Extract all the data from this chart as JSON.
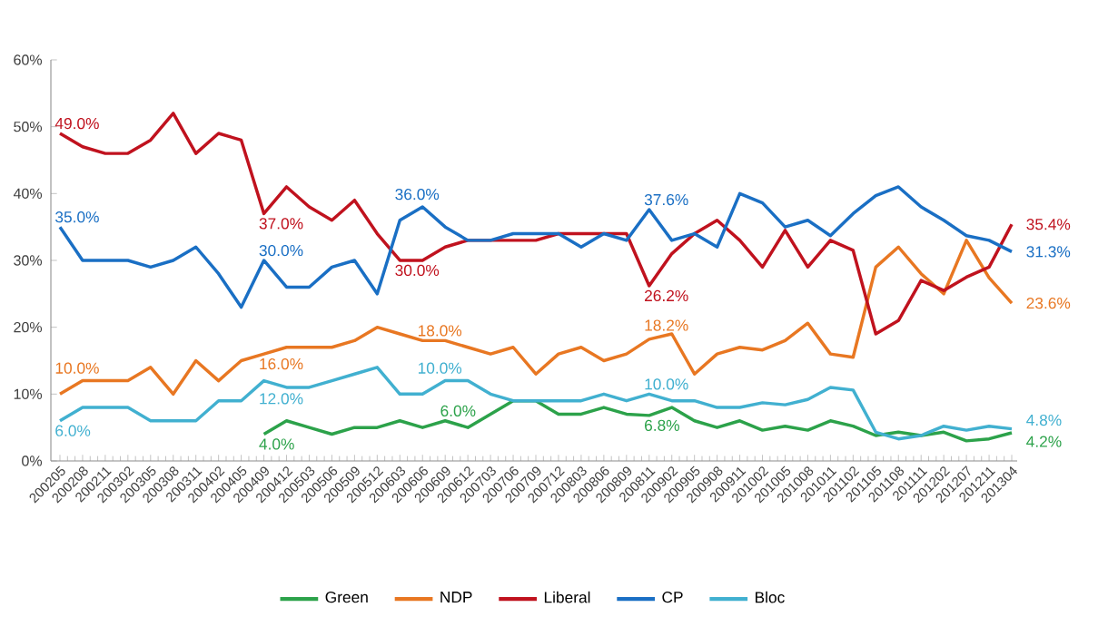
{
  "chart_data": {
    "type": "line",
    "categories": [
      "200205",
      "200208",
      "200211",
      "200302",
      "200305",
      "200308",
      "200311",
      "200402",
      "200405",
      "200409",
      "200412",
      "200503",
      "200506",
      "200509",
      "200512",
      "200603",
      "200606",
      "200609",
      "200612",
      "200703",
      "200706",
      "200709",
      "200712",
      "200803",
      "200806",
      "200809",
      "200811",
      "200902",
      "200905",
      "200908",
      "200911",
      "201002",
      "201005",
      "201008",
      "201011",
      "201102",
      "201105",
      "201108",
      "201111",
      "201202",
      "201207",
      "201211",
      "201304"
    ],
    "ylim": [
      0,
      60
    ],
    "yticks": [
      {
        "value": 0,
        "label": "0%"
      },
      {
        "value": 10,
        "label": "10%"
      },
      {
        "value": 20,
        "label": "20%"
      },
      {
        "value": 30,
        "label": "30%"
      },
      {
        "value": 40,
        "label": "40%"
      },
      {
        "value": 50,
        "label": "50%"
      },
      {
        "value": 60,
        "label": "60%"
      }
    ],
    "legend": "bottom",
    "series": [
      {
        "name": "Green",
        "color": "#2ca24a",
        "values": [
          null,
          null,
          null,
          null,
          null,
          null,
          null,
          null,
          null,
          4.0,
          6,
          5,
          4,
          5,
          5,
          6,
          5,
          6.0,
          5,
          7,
          9,
          9,
          7,
          7,
          8,
          7,
          6.8,
          8,
          6,
          5,
          6,
          4.6,
          5.2,
          4.6,
          6,
          5.2,
          3.8,
          4.3,
          3.8,
          4.3,
          3,
          3.3,
          4.2
        ],
        "value_labels": [
          null,
          null,
          null,
          null,
          null,
          null,
          null,
          null,
          null,
          "4.0%",
          null,
          null,
          null,
          null,
          null,
          null,
          null,
          "6.0%",
          null,
          null,
          null,
          null,
          null,
          null,
          null,
          null,
          "6.8%",
          null,
          null,
          null,
          null,
          null,
          null,
          null,
          null,
          null,
          null,
          null,
          null,
          null,
          null,
          null,
          "4.2%"
        ]
      },
      {
        "name": "NDP",
        "color": "#e87722",
        "values": [
          10.0,
          12,
          12,
          12,
          14,
          10,
          15,
          12,
          15,
          16.0,
          17,
          17,
          17,
          18,
          20,
          19,
          18.0,
          18,
          17,
          16,
          17,
          13,
          16,
          17,
          15,
          16,
          18.2,
          19,
          13,
          16,
          17,
          16.6,
          18,
          20.6,
          16,
          15.5,
          29,
          32,
          28,
          25,
          33,
          27.4,
          23.6
        ],
        "value_labels": [
          "10.0%",
          null,
          null,
          null,
          null,
          null,
          null,
          null,
          null,
          "16.0%",
          null,
          null,
          null,
          null,
          null,
          null,
          "18.0%",
          null,
          null,
          null,
          null,
          null,
          null,
          null,
          null,
          null,
          "18.2%",
          null,
          null,
          null,
          null,
          null,
          null,
          null,
          null,
          null,
          null,
          null,
          null,
          null,
          null,
          null,
          "23.6%"
        ]
      },
      {
        "name": "Liberal",
        "color": "#c0121e",
        "values": [
          49.0,
          47,
          46,
          46,
          48,
          52,
          46,
          49,
          48,
          37.0,
          41,
          38,
          36,
          39,
          34,
          30.0,
          30,
          32,
          33,
          33,
          33,
          33,
          34,
          34,
          34,
          34,
          26.2,
          31,
          34,
          36,
          33,
          29,
          34.5,
          29,
          33,
          31.5,
          19,
          21,
          27,
          25.5,
          27.5,
          29,
          35.4
        ],
        "value_labels": [
          "49.0%",
          null,
          null,
          null,
          null,
          null,
          null,
          null,
          null,
          "37.0%",
          null,
          null,
          null,
          null,
          null,
          "30.0%",
          null,
          null,
          null,
          null,
          null,
          null,
          null,
          null,
          null,
          null,
          "26.2%",
          null,
          null,
          null,
          null,
          null,
          null,
          null,
          null,
          null,
          null,
          null,
          null,
          null,
          null,
          null,
          "35.4%"
        ]
      },
      {
        "name": "CP",
        "color": "#1a6fc4",
        "values": [
          35.0,
          30,
          30,
          30,
          29,
          30,
          32,
          28,
          23,
          30.0,
          26,
          26,
          29,
          30,
          25,
          36.0,
          38,
          35,
          33,
          33,
          34,
          34,
          34,
          32,
          34,
          33,
          37.6,
          33,
          34,
          32,
          40,
          38.6,
          35,
          36,
          33.7,
          37,
          39.7,
          41,
          38,
          36,
          33.7,
          33,
          31.3
        ],
        "value_labels": [
          "35.0%",
          null,
          null,
          null,
          null,
          null,
          null,
          null,
          null,
          "30.0%",
          null,
          null,
          null,
          null,
          null,
          "36.0%",
          null,
          null,
          null,
          null,
          null,
          null,
          null,
          null,
          null,
          null,
          "37.6%",
          null,
          null,
          null,
          null,
          null,
          null,
          null,
          null,
          null,
          null,
          null,
          null,
          null,
          null,
          null,
          "31.3%"
        ]
      },
      {
        "name": "Bloc",
        "color": "#41b0d0",
        "values": [
          6.0,
          8,
          8,
          8,
          6,
          6,
          6,
          9,
          9,
          12.0,
          11,
          11,
          12,
          13,
          14,
          10,
          10.0,
          12,
          12,
          10,
          9,
          9,
          9,
          9,
          10,
          9,
          10.0,
          9,
          9,
          8,
          8,
          8.7,
          8.4,
          9.2,
          11,
          10.6,
          4.3,
          3.3,
          3.8,
          5.2,
          4.6,
          5.2,
          4.8
        ],
        "value_labels": [
          "6.0%",
          null,
          null,
          null,
          null,
          null,
          null,
          null,
          null,
          "12.0%",
          null,
          null,
          null,
          null,
          null,
          null,
          "10.0%",
          null,
          null,
          null,
          null,
          null,
          null,
          null,
          null,
          null,
          "10.0%",
          null,
          null,
          null,
          null,
          null,
          null,
          null,
          null,
          null,
          null,
          null,
          null,
          null,
          null,
          null,
          "4.8%"
        ]
      }
    ]
  }
}
